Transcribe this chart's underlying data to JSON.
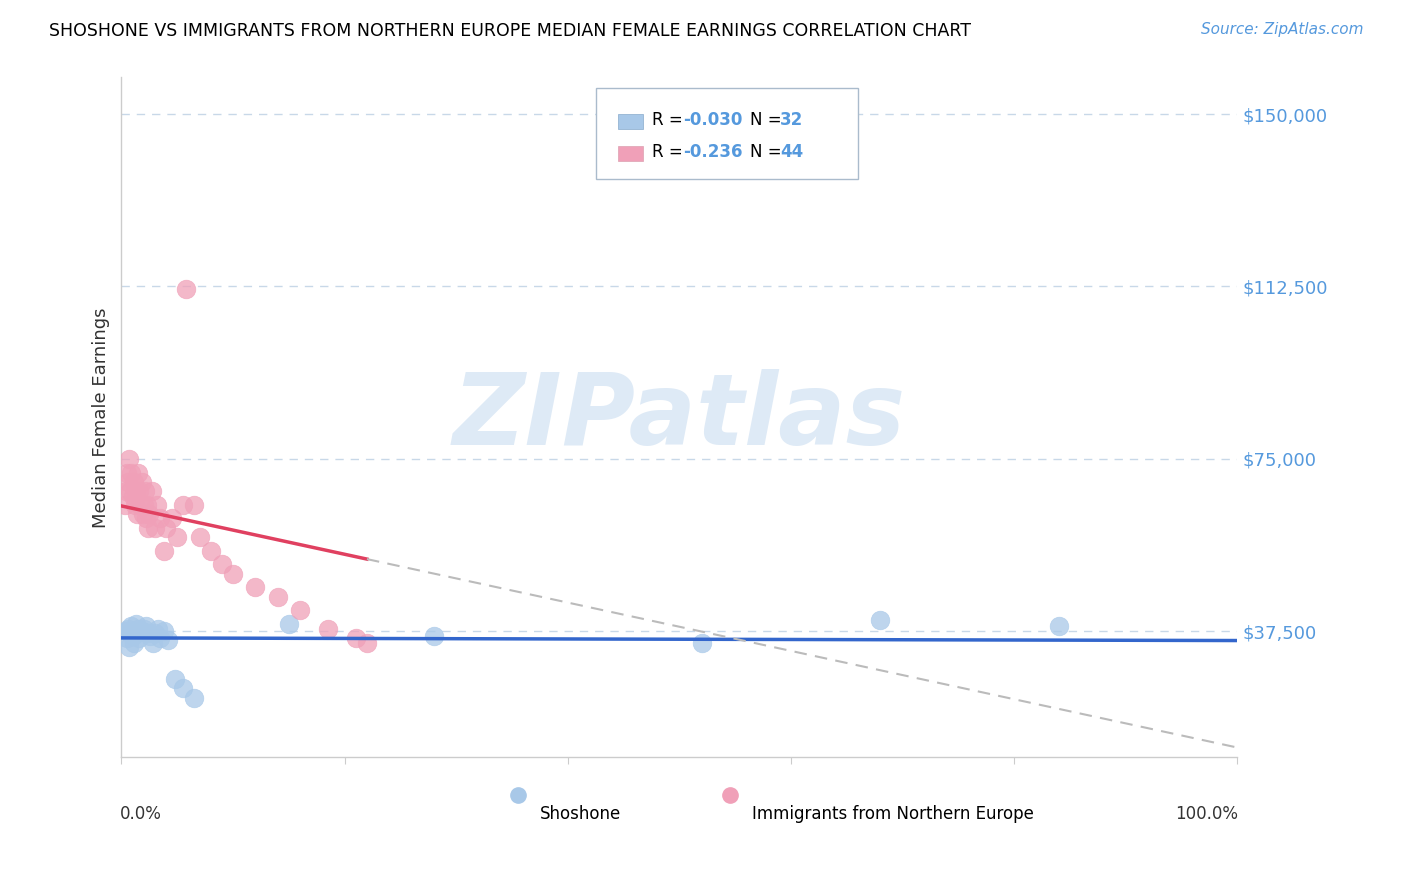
{
  "title": "SHOSHONE VS IMMIGRANTS FROM NORTHERN EUROPE MEDIAN FEMALE EARNINGS CORRELATION CHART",
  "source": "Source: ZipAtlas.com",
  "ylabel": "Median Female Earnings",
  "ytick_labels": [
    "$37,500",
    "$75,000",
    "$112,500",
    "$150,000"
  ],
  "ytick_values": [
    37500,
    75000,
    112500,
    150000
  ],
  "ymin": 10000,
  "ymax": 158000,
  "xmin": 0.0,
  "xmax": 1.0,
  "color_blue": "#A8C8E8",
  "color_pink": "#F0A0B8",
  "trendline_blue": "#3366CC",
  "trendline_pink": "#E04060",
  "trendline_dashed": "#BBBBBB",
  "background": "#ffffff",
  "grid_color": "#C8D8E8",
  "watermark_color": "#C8DCF0",
  "watermark_alpha": 0.6,
  "shoshone_x": [
    0.004,
    0.005,
    0.006,
    0.007,
    0.008,
    0.009,
    0.01,
    0.011,
    0.012,
    0.013,
    0.014,
    0.015,
    0.016,
    0.018,
    0.02,
    0.022,
    0.024,
    0.026,
    0.028,
    0.03,
    0.033,
    0.035,
    0.038,
    0.042,
    0.048,
    0.055,
    0.065,
    0.15,
    0.28,
    0.52,
    0.68,
    0.84
  ],
  "shoshone_y": [
    37500,
    36000,
    38000,
    34000,
    37000,
    38500,
    36500,
    35000,
    37500,
    39000,
    37000,
    38000,
    36000,
    37500,
    38000,
    38500,
    37000,
    36500,
    35000,
    37000,
    38000,
    36000,
    37500,
    35500,
    27000,
    25000,
    23000,
    39000,
    36500,
    35000,
    40000,
    38500
  ],
  "immigrants_x": [
    0.003,
    0.004,
    0.005,
    0.006,
    0.007,
    0.008,
    0.009,
    0.01,
    0.011,
    0.012,
    0.013,
    0.014,
    0.015,
    0.016,
    0.017,
    0.018,
    0.019,
    0.02,
    0.021,
    0.022,
    0.023,
    0.024,
    0.025,
    0.027,
    0.03,
    0.032,
    0.035,
    0.038,
    0.04,
    0.045,
    0.05,
    0.055,
    0.058,
    0.065,
    0.07,
    0.08,
    0.09,
    0.1,
    0.12,
    0.14,
    0.16,
    0.185,
    0.21,
    0.22
  ],
  "immigrants_y": [
    65000,
    68000,
    72000,
    70000,
    75000,
    68000,
    72000,
    67000,
    70000,
    65000,
    68000,
    63000,
    72000,
    68000,
    65000,
    70000,
    63000,
    65000,
    68000,
    62000,
    65000,
    60000,
    63000,
    68000,
    60000,
    65000,
    62000,
    55000,
    60000,
    62000,
    58000,
    65000,
    112000,
    65000,
    58000,
    55000,
    52000,
    50000,
    47000,
    45000,
    42000,
    38000,
    36000,
    35000
  ],
  "legend_R1": "-0.030",
  "legend_N1": "32",
  "legend_R2": "-0.236",
  "legend_N2": "44",
  "source_color": "#5599DD",
  "axis_label_color": "#5599DD",
  "text_color": "#333333"
}
